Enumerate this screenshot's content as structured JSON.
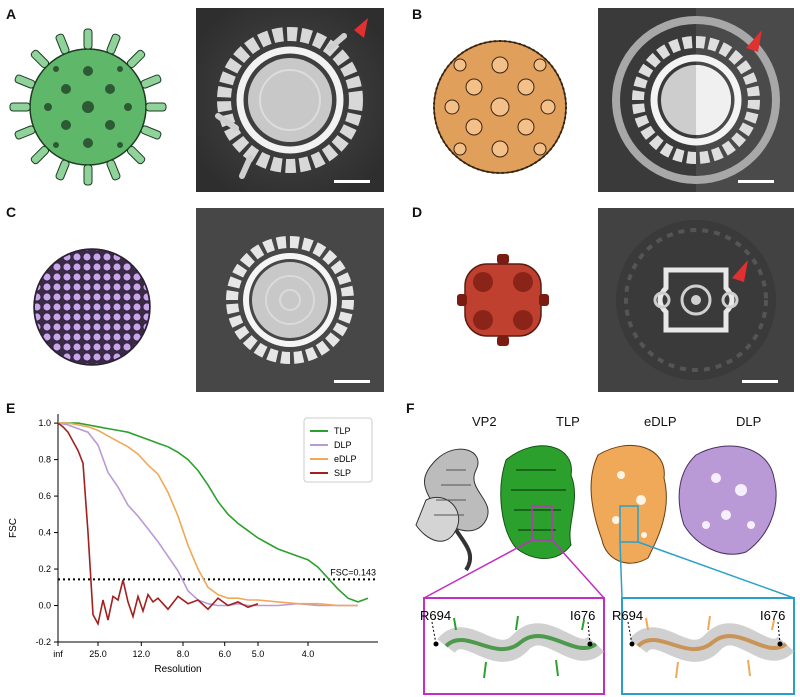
{
  "panels": {
    "a": "A",
    "b": "B",
    "c": "C",
    "d": "D",
    "e": "E",
    "f": "F"
  },
  "structure_labels": [
    "VP2",
    "TLP",
    "eDLP",
    "DLP"
  ],
  "residue_labels": {
    "left_start": "R694",
    "left_end": "I676",
    "right_start": "R694",
    "right_end": "I676"
  },
  "colors": {
    "tlp": "#2ca02c",
    "dlp": "#b99ad6",
    "edlp": "#f0a859",
    "slp": "#a32020",
    "tlp_particle": "#5fb86a",
    "edlp_particle": "#e0a05c",
    "dlp_particle": "#b794dc",
    "slp_particle": "#c04030",
    "arrow": "#e03030",
    "zoom_magenta": "#c030c0",
    "zoom_cyan": "#2aa0c8"
  },
  "chart_data": {
    "type": "line",
    "title": "",
    "xlabel": "Resolution",
    "ylabel": "FSC",
    "x_tick_labels": [
      "inf",
      "25.0",
      "12.0",
      "8.0",
      "6.0",
      "5.0",
      "4.0"
    ],
    "x_tick_positions": [
      0.0,
      0.04,
      0.0833,
      0.125,
      0.1667,
      0.2,
      0.25
    ],
    "xlim": [
      0.0,
      0.32
    ],
    "ylim": [
      -0.2,
      1.05
    ],
    "y_ticks": [
      -0.2,
      0.0,
      0.2,
      0.4,
      0.6,
      0.8,
      1.0
    ],
    "y_tick_labels": [
      "-0.2",
      "0.0",
      "0.2",
      "0.4",
      "0.6",
      "0.8",
      "1.0"
    ],
    "threshold": {
      "value": 0.143,
      "label": "FSC=0.143"
    },
    "legend_position": "top-right",
    "series": [
      {
        "name": "TLP",
        "x": [
          0.0,
          0.01,
          0.02,
          0.03,
          0.04,
          0.05,
          0.06,
          0.07,
          0.08,
          0.09,
          0.1,
          0.11,
          0.12,
          0.13,
          0.14,
          0.15,
          0.16,
          0.17,
          0.18,
          0.19,
          0.2,
          0.21,
          0.22,
          0.23,
          0.24,
          0.25,
          0.26,
          0.27,
          0.28,
          0.29,
          0.3,
          0.31
        ],
        "y": [
          1.0,
          1.0,
          1.0,
          0.99,
          0.98,
          0.97,
          0.96,
          0.95,
          0.93,
          0.91,
          0.89,
          0.87,
          0.84,
          0.8,
          0.74,
          0.66,
          0.57,
          0.5,
          0.45,
          0.41,
          0.37,
          0.34,
          0.31,
          0.29,
          0.27,
          0.25,
          0.21,
          0.15,
          0.09,
          0.04,
          0.02,
          0.04
        ]
      },
      {
        "name": "DLP",
        "x": [
          0.0,
          0.01,
          0.02,
          0.03,
          0.04,
          0.05,
          0.06,
          0.07,
          0.08,
          0.09,
          0.1,
          0.11,
          0.12,
          0.13,
          0.14,
          0.15,
          0.16,
          0.17,
          0.18,
          0.19,
          0.2,
          0.22,
          0.24,
          0.26,
          0.28,
          0.3
        ],
        "y": [
          1.0,
          0.99,
          0.97,
          0.95,
          0.88,
          0.73,
          0.65,
          0.55,
          0.49,
          0.42,
          0.35,
          0.27,
          0.19,
          0.08,
          0.03,
          0.01,
          0.0,
          0.0,
          0.01,
          0.0,
          0.0,
          0.0,
          0.01,
          0.0,
          0.0,
          0.0
        ]
      },
      {
        "name": "eDLP",
        "x": [
          0.0,
          0.01,
          0.02,
          0.03,
          0.04,
          0.05,
          0.06,
          0.07,
          0.08,
          0.09,
          0.1,
          0.11,
          0.12,
          0.13,
          0.14,
          0.15,
          0.16,
          0.17,
          0.18,
          0.19,
          0.2,
          0.22,
          0.24,
          0.26,
          0.28,
          0.3
        ],
        "y": [
          1.0,
          1.0,
          0.99,
          0.98,
          0.96,
          0.93,
          0.9,
          0.87,
          0.83,
          0.77,
          0.72,
          0.62,
          0.49,
          0.33,
          0.2,
          0.1,
          0.06,
          0.04,
          0.04,
          0.03,
          0.03,
          0.02,
          0.01,
          0.01,
          0.0,
          0.0
        ]
      },
      {
        "name": "SLP",
        "x": [
          0.0,
          0.005,
          0.01,
          0.015,
          0.02,
          0.025,
          0.03,
          0.035,
          0.04,
          0.045,
          0.05,
          0.055,
          0.06,
          0.065,
          0.07,
          0.075,
          0.08,
          0.085,
          0.09,
          0.095,
          0.1,
          0.11,
          0.12,
          0.13,
          0.14,
          0.15,
          0.16,
          0.17,
          0.18,
          0.19,
          0.2
        ],
        "y": [
          1.0,
          0.98,
          0.95,
          0.9,
          0.85,
          0.78,
          0.4,
          -0.05,
          -0.1,
          0.03,
          -0.08,
          0.05,
          0.03,
          0.14,
          0.02,
          -0.06,
          0.05,
          -0.03,
          0.06,
          0.02,
          0.04,
          -0.02,
          0.05,
          0.01,
          0.03,
          -0.02,
          0.04,
          0.0,
          0.02,
          -0.01,
          0.01
        ]
      }
    ]
  }
}
